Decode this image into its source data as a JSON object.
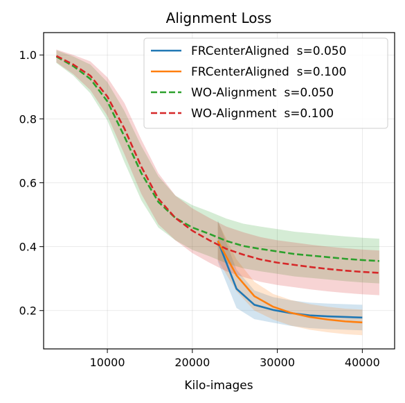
{
  "chart_data": {
    "type": "line",
    "title": "Alignment Loss",
    "xlabel": "Kilo-images",
    "ylabel": "",
    "xlim": [
      2500,
      43800
    ],
    "ylim": [
      0.08,
      1.07
    ],
    "xticks": [
      10000,
      20000,
      30000,
      40000
    ],
    "yticks": [
      0.2,
      0.4,
      0.6,
      0.8,
      1.0
    ],
    "xtick_labels": [
      "10000",
      "20000",
      "30000",
      "40000"
    ],
    "ytick_labels": [
      "0.2",
      "0.4",
      "0.6",
      "0.8",
      "1.0"
    ],
    "grid": true,
    "legend_position": "top-right",
    "series": [
      {
        "name": "FRCenterAligned  s=0.050",
        "color": "#1f77b4",
        "style": "solid",
        "x": [
          23000,
          25200,
          27300,
          29500,
          31600,
          33800,
          35900,
          38000,
          40000
        ],
        "y": [
          0.418,
          0.268,
          0.218,
          0.202,
          0.192,
          0.185,
          0.182,
          0.18,
          0.178
        ],
        "band": [
          0.065,
          0.06,
          0.045,
          0.04,
          0.04,
          0.04,
          0.04,
          0.04,
          0.04
        ]
      },
      {
        "name": "FRCenterAligned  s=0.100",
        "color": "#ff7f0e",
        "style": "solid",
        "x": [
          23000,
          25200,
          27300,
          29500,
          31600,
          33800,
          35900,
          38000,
          40000
        ],
        "y": [
          0.418,
          0.31,
          0.245,
          0.212,
          0.193,
          0.18,
          0.172,
          0.166,
          0.163
        ],
        "band": [
          0.06,
          0.05,
          0.045,
          0.04,
          0.04,
          0.04,
          0.04,
          0.04,
          0.04
        ]
      },
      {
        "name": "WO-Alignment  s=0.050",
        "color": "#2ca02c",
        "style": "dashed",
        "x": [
          4000,
          6000,
          8000,
          10000,
          12000,
          14000,
          16000,
          18000,
          20000,
          22000,
          24000,
          26000,
          28000,
          30000,
          32000,
          34000,
          36000,
          38000,
          40000,
          42000
        ],
        "y": [
          0.995,
          0.965,
          0.925,
          0.855,
          0.745,
          0.63,
          0.54,
          0.49,
          0.46,
          0.44,
          0.418,
          0.402,
          0.393,
          0.385,
          0.377,
          0.372,
          0.367,
          0.362,
          0.358,
          0.355
        ],
        "band": [
          0.02,
          0.03,
          0.045,
          0.06,
          0.08,
          0.085,
          0.08,
          0.07,
          0.07,
          0.07,
          0.07,
          0.07,
          0.07,
          0.07,
          0.07,
          0.07,
          0.07,
          0.07,
          0.07,
          0.07
        ]
      },
      {
        "name": "WO-Alignment  s=0.100",
        "color": "#d62728",
        "style": "dashed",
        "x": [
          4000,
          6000,
          8000,
          10000,
          12000,
          14000,
          16000,
          18000,
          20000,
          22000,
          24000,
          26000,
          28000,
          30000,
          32000,
          34000,
          36000,
          38000,
          40000,
          42000
        ],
        "y": [
          0.997,
          0.97,
          0.935,
          0.87,
          0.77,
          0.65,
          0.55,
          0.49,
          0.45,
          0.42,
          0.393,
          0.375,
          0.36,
          0.35,
          0.343,
          0.336,
          0.33,
          0.325,
          0.321,
          0.318
        ],
        "band": [
          0.02,
          0.03,
          0.045,
          0.06,
          0.08,
          0.085,
          0.08,
          0.07,
          0.07,
          0.07,
          0.07,
          0.07,
          0.07,
          0.07,
          0.07,
          0.07,
          0.07,
          0.07,
          0.07,
          0.07
        ]
      }
    ]
  }
}
